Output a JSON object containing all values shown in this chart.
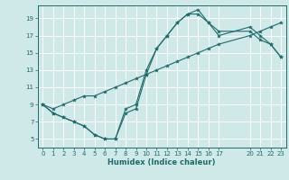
{
  "xlabel": "Humidex (Indice chaleur)",
  "bg_color": "#cfe8e8",
  "grid_color": "#ffffff",
  "line_color": "#1e6b6b",
  "xlim": [
    -0.5,
    23.5
  ],
  "ylim": [
    4.0,
    20.5
  ],
  "xticks": [
    0,
    1,
    2,
    3,
    4,
    5,
    6,
    7,
    8,
    9,
    10,
    11,
    12,
    13,
    14,
    15,
    16,
    17,
    20,
    21,
    22,
    23
  ],
  "yticks": [
    5,
    7,
    9,
    11,
    13,
    15,
    17,
    19
  ],
  "curve1_x": [
    0,
    1,
    2,
    3,
    4,
    5,
    6,
    7,
    8,
    9,
    10,
    11,
    12,
    13,
    14,
    15,
    16,
    17,
    20,
    21,
    22,
    23
  ],
  "curve1_y": [
    9,
    8,
    7.5,
    7,
    6.5,
    5.5,
    5,
    5,
    8.5,
    9,
    13,
    15.5,
    17,
    18.5,
    19.5,
    19.5,
    18.5,
    17.5,
    17.5,
    16.5,
    16,
    14.5
  ],
  "curve2_x": [
    0,
    1,
    2,
    3,
    4,
    5,
    6,
    7,
    8,
    9,
    10,
    11,
    12,
    13,
    14,
    15,
    16,
    17,
    20,
    21,
    22,
    23
  ],
  "curve2_y": [
    9,
    8,
    7.5,
    7,
    6.5,
    5.5,
    5,
    5,
    8,
    8.5,
    12.5,
    15.5,
    17,
    18.5,
    19.5,
    20,
    18.5,
    17,
    18,
    17,
    16,
    14.5
  ],
  "curve3_x": [
    0,
    1,
    2,
    3,
    4,
    5,
    6,
    7,
    8,
    9,
    10,
    11,
    12,
    13,
    14,
    15,
    16,
    17,
    20,
    21,
    22,
    23
  ],
  "curve3_y": [
    9,
    8.5,
    9,
    9.5,
    10,
    10,
    10.5,
    11,
    11.5,
    12,
    12.5,
    13,
    13.5,
    14,
    14.5,
    15,
    15.5,
    16,
    17,
    17.5,
    18,
    18.5
  ]
}
